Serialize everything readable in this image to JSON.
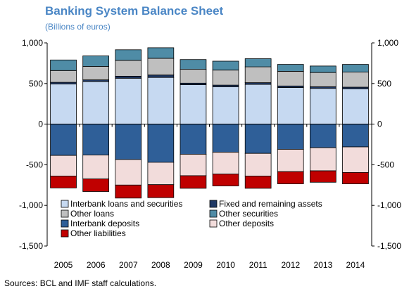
{
  "title": "Banking System Balance Sheet",
  "subtitle": "(Billions of euros)",
  "source": "Sources: BCL and IMF staff calculations.",
  "chart_data": {
    "type": "bar",
    "stacked": true,
    "title": "Banking System Balance Sheet",
    "subtitle": "(Billions of euros)",
    "categories": [
      "2005",
      "2006",
      "2007",
      "2008",
      "2009",
      "2010",
      "2011",
      "2012",
      "2013",
      "2014"
    ],
    "ylim": [
      -1500,
      1000
    ],
    "yticks": [
      1000,
      500,
      0,
      -500,
      -1000,
      -1500
    ],
    "ytick_labels": [
      "1,000",
      "500",
      "0",
      "-500",
      "-1,000",
      "-1,500"
    ],
    "grid": false,
    "secondary_y_axis": true,
    "legend_position": "bottom inside plot",
    "series": [
      {
        "name": "Interbank loans and securities",
        "color": "#c6d9f1",
        "values": [
          495,
          525,
          565,
          575,
          485,
          460,
          490,
          450,
          440,
          435
        ]
      },
      {
        "name": "Fixed and remaining assets",
        "color": "#1f3864",
        "values": [
          20,
          20,
          25,
          30,
          20,
          20,
          20,
          20,
          20,
          20
        ]
      },
      {
        "name": "Other loans",
        "color": "#bfbfbf",
        "values": [
          145,
          165,
          195,
          205,
          170,
          185,
          195,
          180,
          175,
          185
        ]
      },
      {
        "name": "Other securities",
        "color": "#4f8ca6",
        "values": [
          130,
          130,
          130,
          130,
          120,
          110,
          100,
          85,
          80,
          95
        ]
      },
      {
        "name": "Interbank deposits",
        "color": "#2f5f98",
        "values": [
          -385,
          -380,
          -435,
          -470,
          -370,
          -345,
          -360,
          -310,
          -290,
          -280
        ]
      },
      {
        "name": "Other deposits",
        "color": "#f2dcdb",
        "values": [
          -255,
          -295,
          -315,
          -275,
          -265,
          -270,
          -280,
          -275,
          -285,
          -315
        ]
      },
      {
        "name": "Other liabilities",
        "color": "#c00000",
        "values": [
          -145,
          -155,
          -160,
          -160,
          -155,
          -145,
          -150,
          -150,
          -140,
          -140
        ]
      }
    ]
  }
}
